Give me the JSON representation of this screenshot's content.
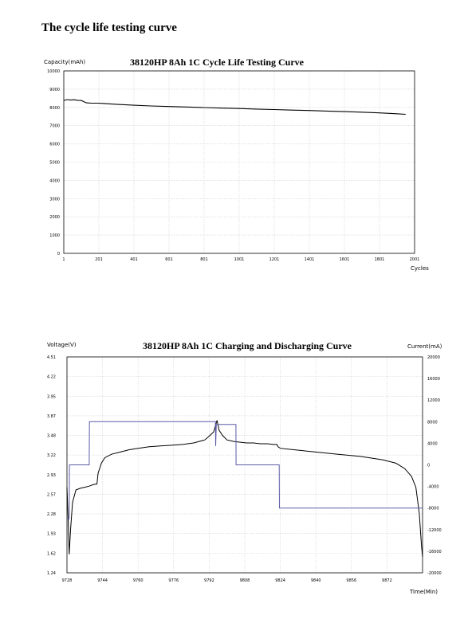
{
  "page": {
    "heading": "The cycle life testing curve"
  },
  "chart_data": [
    {
      "type": "line",
      "title": "38120HP 8Ah 1C Cycle Life Testing Curve",
      "ylabel": "Capacity(mAh)",
      "xlabel": "Cycles",
      "xlim": [
        1,
        2001
      ],
      "ylim": [
        0,
        10000
      ],
      "xticks": [
        "1",
        "201",
        "401",
        "601",
        "801",
        "1001",
        "1201",
        "1401",
        "1601",
        "1801",
        "2001"
      ],
      "yticks": [
        "0",
        "1000",
        "2000",
        "3000",
        "4000",
        "5000",
        "6000",
        "7000",
        "8000",
        "9000",
        "10000"
      ],
      "grid": true,
      "series": [
        {
          "color": "#000000",
          "x": [
            1,
            20,
            40,
            60,
            80,
            100,
            130,
            160,
            200,
            250,
            300,
            400,
            500,
            600,
            700,
            800,
            900,
            1000,
            1100,
            1200,
            1300,
            1400,
            1500,
            1600,
            1700,
            1800,
            1900,
            1950
          ],
          "y": [
            8380,
            8430,
            8400,
            8420,
            8390,
            8380,
            8250,
            8230,
            8230,
            8200,
            8170,
            8120,
            8080,
            8050,
            8020,
            7990,
            7960,
            7940,
            7910,
            7880,
            7850,
            7830,
            7800,
            7770,
            7740,
            7700,
            7650,
            7620
          ]
        }
      ]
    },
    {
      "type": "line",
      "title": "38120HP 8Ah 1C Charging and Discharging Curve",
      "ylabel": "Voltage(V)",
      "y2label": "Current(mA)",
      "xlabel": "Time(Min)",
      "xlim": [
        9728,
        9888
      ],
      "ylim": [
        1.24,
        4.51
      ],
      "y2lim": [
        -20000,
        20000
      ],
      "xticks": [
        "9728",
        "9744",
        "9760",
        "9776",
        "9792",
        "9808",
        "9824",
        "9840",
        "9856",
        "9872"
      ],
      "yticks": [
        "1.24",
        "1.62",
        "1.93",
        "2.28",
        "2.57",
        "2.93",
        "3.22",
        "3.48",
        "3.87",
        "3.95",
        "4.22",
        "4.51"
      ],
      "y2ticks": [
        "-20000",
        "-16000",
        "-12000",
        "-8000",
        "-4000",
        "0",
        "4000",
        "8000",
        "12000",
        "16000",
        "20000"
      ],
      "grid": true,
      "series": [
        {
          "name": "Voltage",
          "axis": "left",
          "color": "#000000",
          "x": [
            9728,
            9728.6,
            9729,
            9729.6,
            9730.5,
            9732,
            9734,
            9736,
            9738,
            9740,
            9741.5,
            9742,
            9743.5,
            9745,
            9748,
            9752,
            9756,
            9760,
            9765,
            9770,
            9775,
            9780,
            9785,
            9790,
            9792,
            9794,
            9795.5,
            9796.5,
            9798,
            9800,
            9803,
            9806,
            9809,
            9812,
            9815,
            9818,
            9821,
            9822.5,
            9823,
            9824,
            9830,
            9840,
            9850,
            9860,
            9870,
            9876,
            9880,
            9883,
            9885,
            9886.5,
            9887.5,
            9888
          ],
          "y": [
            2.7,
            2.1,
            1.6,
            2.0,
            2.45,
            2.65,
            2.68,
            2.7,
            2.72,
            2.75,
            2.76,
            2.95,
            3.1,
            3.18,
            3.23,
            3.26,
            3.29,
            3.31,
            3.33,
            3.34,
            3.35,
            3.36,
            3.38,
            3.42,
            3.47,
            3.55,
            3.78,
            3.58,
            3.48,
            3.42,
            3.4,
            3.39,
            3.38,
            3.38,
            3.37,
            3.37,
            3.36,
            3.36,
            3.33,
            3.31,
            3.29,
            3.26,
            3.23,
            3.2,
            3.15,
            3.1,
            3.02,
            2.9,
            2.7,
            2.3,
            1.75,
            1.55
          ]
        },
        {
          "name": "Current",
          "axis": "right",
          "color": "#5a5aa8",
          "x": [
            9728,
            9729,
            9729.1,
            9738,
            9738.1,
            9794.8,
            9794.9,
            9795.2,
            9795.3,
            9804,
            9804.1,
            9823.5,
            9823.6,
            9888
          ],
          "y": [
            -10000,
            -10000,
            0,
            0,
            8000,
            8000,
            3500,
            7500,
            7500,
            7500,
            0,
            0,
            -8000,
            -8000
          ]
        }
      ]
    }
  ]
}
